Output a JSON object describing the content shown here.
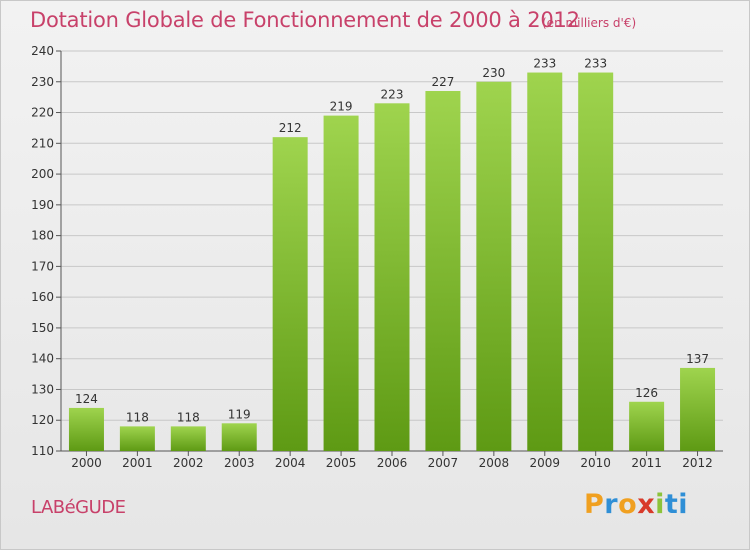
{
  "header": {
    "title": "Dotation Globale de Fonctionnement de 2000 à 2012",
    "subtitle": "(en milliers d'€)"
  },
  "footer": {
    "place": "LABéGUDE",
    "brand": "Proxiti",
    "brand_letters": [
      "P",
      "r",
      "o",
      "x",
      "i",
      "ti"
    ]
  },
  "colors": {
    "title": "#c8416a",
    "bar_top": "#9fd44e",
    "bar_bottom": "#5e9a14",
    "grid": "#c8c8c8"
  },
  "chart_data": {
    "type": "bar",
    "categories": [
      "2000",
      "2001",
      "2002",
      "2003",
      "2004",
      "2005",
      "2006",
      "2007",
      "2008",
      "2009",
      "2010",
      "2011",
      "2012"
    ],
    "values": [
      124,
      118,
      118,
      119,
      212,
      219,
      223,
      227,
      230,
      233,
      233,
      126,
      137
    ],
    "ylim": [
      110,
      240
    ],
    "yticks": [
      110,
      120,
      130,
      140,
      150,
      160,
      170,
      180,
      190,
      200,
      210,
      220,
      230,
      240
    ],
    "grid": true,
    "data_labels": true
  }
}
